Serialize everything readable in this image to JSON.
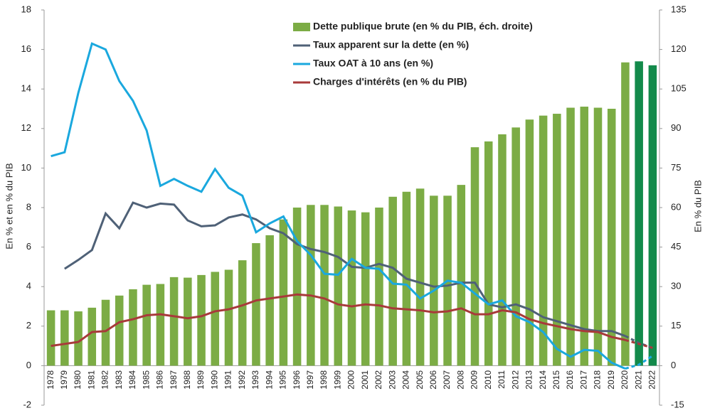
{
  "chart_data": {
    "type": "bar-line",
    "y_label": "En % et en % du PIB",
    "y2_label": "En % du PIB",
    "categories": [
      "1978",
      "1979",
      "1980",
      "1981",
      "1982",
      "1983",
      "1984",
      "1985",
      "1986",
      "1987",
      "1988",
      "1989",
      "1990",
      "1991",
      "1992",
      "1993",
      "1994",
      "1995",
      "1996",
      "1997",
      "1998",
      "1999",
      "2000",
      "2001",
      "2002",
      "2003",
      "2004",
      "2005",
      "2006",
      "2007",
      "2008",
      "2009",
      "2010",
      "2011",
      "2012",
      "2013",
      "2014",
      "2015",
      "2016",
      "2017",
      "2018",
      "2019",
      "2020",
      "2021",
      "2022"
    ],
    "ylim": [
      -2,
      18
    ],
    "yticks": [
      -2,
      0,
      2,
      4,
      6,
      8,
      10,
      12,
      14,
      16,
      18
    ],
    "y2lim": [
      -15,
      135
    ],
    "y2ticks": [
      -15,
      0,
      15,
      30,
      45,
      60,
      75,
      90,
      105,
      120,
      135
    ],
    "dashed_from": 42,
    "series": [
      {
        "name": "Dette publique brute (en % du PIB, éch. droite)",
        "type": "bar",
        "axis": "y2",
        "color": "#7cac45",
        "colors": [
          "#7cac45",
          "#7cac45",
          "#7cac45",
          "#7cac45",
          "#7cac45",
          "#7cac45",
          "#7cac45",
          "#7cac45",
          "#7cac45",
          "#7cac45",
          "#7cac45",
          "#7cac45",
          "#7cac45",
          "#7cac45",
          "#7cac45",
          "#7cac45",
          "#7cac45",
          "#7cac45",
          "#7cac45",
          "#7cac45",
          "#7cac45",
          "#7cac45",
          "#7cac45",
          "#7cac45",
          "#7cac45",
          "#7cac45",
          "#7cac45",
          "#7cac45",
          "#7cac45",
          "#7cac45",
          "#7cac45",
          "#7cac45",
          "#7cac45",
          "#7cac45",
          "#7cac45",
          "#7cac45",
          "#7cac45",
          "#7cac45",
          "#7cac45",
          "#7cac45",
          "#7cac45",
          "#7cac45",
          "#7cac45",
          "#138a4b",
          "#138a4b"
        ],
        "values": [
          21,
          21,
          20.6,
          22,
          25,
          26.6,
          29,
          30.7,
          31,
          33.6,
          33.4,
          34.4,
          35.6,
          36.4,
          40,
          46.5,
          49.5,
          55.5,
          60,
          61,
          61,
          60.4,
          58.9,
          58.2,
          60,
          64.1,
          66,
          67.2,
          64.5,
          64.5,
          68.6,
          82.9,
          85.1,
          87.8,
          90.4,
          93.4,
          94.9,
          95.6,
          97.9,
          98.3,
          97.9,
          97.5,
          115.1,
          115.5,
          114
        ]
      },
      {
        "name": "Taux apparent sur la dette (en %)",
        "type": "line",
        "color": "#4f6177",
        "values": [
          null,
          4.9,
          5.35,
          5.85,
          7.7,
          6.95,
          8.25,
          8.0,
          8.2,
          8.15,
          7.35,
          7.05,
          7.1,
          7.5,
          7.65,
          7.4,
          6.95,
          6.7,
          6.15,
          5.9,
          5.75,
          5.5,
          5.0,
          4.95,
          5.15,
          4.95,
          4.4,
          4.2,
          4.0,
          4.05,
          4.2,
          4.2,
          3.1,
          2.95,
          3.1,
          2.85,
          2.45,
          2.25,
          2.05,
          1.85,
          1.75,
          1.75,
          1.5,
          1.15,
          0.9
        ]
      },
      {
        "name": "Taux OAT à 10 ans (en %)",
        "type": "line",
        "color": "#1aa8de",
        "values": [
          10.6,
          10.8,
          13.8,
          16.3,
          16.0,
          14.4,
          13.4,
          11.9,
          9.1,
          9.45,
          9.1,
          8.8,
          9.95,
          9.0,
          8.6,
          6.75,
          7.2,
          7.55,
          6.3,
          5.6,
          4.65,
          4.6,
          5.4,
          4.95,
          4.9,
          4.15,
          4.1,
          3.4,
          3.8,
          4.3,
          4.2,
          3.65,
          3.1,
          3.3,
          2.5,
          2.2,
          1.7,
          0.85,
          0.45,
          0.8,
          0.75,
          0.15,
          -0.15,
          0.05,
          0.5
        ]
      },
      {
        "name": "Charges d'intérêts (en % du PIB)",
        "type": "line",
        "color": "#a83a3a",
        "values": [
          1.0,
          1.1,
          1.2,
          1.7,
          1.75,
          2.2,
          2.35,
          2.55,
          2.6,
          2.5,
          2.4,
          2.5,
          2.75,
          2.85,
          3.05,
          3.3,
          3.4,
          3.5,
          3.6,
          3.55,
          3.4,
          3.1,
          3.0,
          3.1,
          3.05,
          2.9,
          2.85,
          2.8,
          2.7,
          2.75,
          2.9,
          2.6,
          2.6,
          2.8,
          2.7,
          2.35,
          2.15,
          2.0,
          1.85,
          1.75,
          1.7,
          1.45,
          1.3,
          1.1,
          0.9
        ]
      }
    ]
  }
}
